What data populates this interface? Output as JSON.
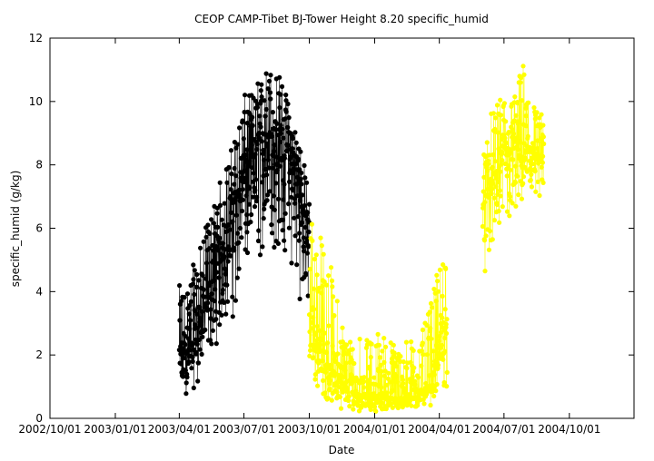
{
  "chart_data": {
    "type": "scatter",
    "title": "CEOP CAMP-Tibet BJ-Tower Height 8.20 specific_humid",
    "xlabel": "Date",
    "ylabel": "specific_humid (g/kg)",
    "ylim": [
      0,
      12
    ],
    "xlim": [
      "2002/10/01",
      "2004/12/31"
    ],
    "yticks": [
      0,
      2,
      4,
      6,
      8,
      10,
      12
    ],
    "xticks": [
      "2002/10/01",
      "2003/01/01",
      "2003/04/01",
      "2003/07/01",
      "2003/10/01",
      "2004/01/01",
      "2004/04/01",
      "2004/07/01",
      "2004/10/01"
    ],
    "grid": false,
    "legend": "none",
    "series": [
      {
        "color": "#000000",
        "x_start": "2003/04/01",
        "x_end": "2003/10/01",
        "low": [
          0.4,
          0.6,
          1.0,
          1.6,
          2.2,
          2.6,
          3.0,
          3.6,
          4.2,
          4.6,
          4.8,
          4.6,
          4.2,
          3.6,
          2.6
        ],
        "high": [
          4.2,
          4.5,
          5.2,
          6.2,
          7.2,
          8.0,
          9.0,
          10.2,
          10.4,
          11.0,
          11.3,
          10.8,
          9.8,
          9.0,
          7.0
        ],
        "mid": [
          1.8,
          2.2,
          3.0,
          3.8,
          4.6,
          5.8,
          6.8,
          7.8,
          8.2,
          8.8,
          8.9,
          8.7,
          8.2,
          7.2,
          5.8
        ]
      },
      {
        "color": "#ffff00",
        "x_start": "2003/10/01",
        "x_end": "2004/04/12",
        "low": [
          1.0,
          0.6,
          0.4,
          0.3,
          0.2,
          0.2,
          0.2,
          0.2,
          0.2,
          0.2,
          0.2,
          0.2,
          0.3,
          0.5,
          0.8
        ],
        "high": [
          7.0,
          6.0,
          5.2,
          3.6,
          2.6,
          3.0,
          2.4,
          2.9,
          2.6,
          2.4,
          2.6,
          2.4,
          3.2,
          4.6,
          6.0
        ],
        "mid": [
          3.2,
          2.2,
          1.6,
          1.2,
          0.9,
          0.8,
          0.7,
          0.7,
          0.7,
          0.6,
          0.7,
          0.8,
          1.0,
          1.8,
          3.0
        ]
      },
      {
        "color": "#ffff00",
        "x_start": "2004/06/01",
        "x_end": "2004/08/26",
        "low": [
          3.6,
          4.4,
          5.0,
          5.4,
          5.6,
          5.8,
          6.0,
          6.2,
          6.0,
          6.2
        ],
        "high": [
          8.2,
          9.6,
          9.8,
          10.4,
          10.0,
          10.6,
          11.3,
          10.4,
          9.8,
          9.6
        ],
        "mid": [
          6.6,
          7.4,
          7.8,
          8.2,
          8.3,
          8.6,
          8.7,
          8.4,
          8.2,
          8.2
        ]
      }
    ]
  }
}
